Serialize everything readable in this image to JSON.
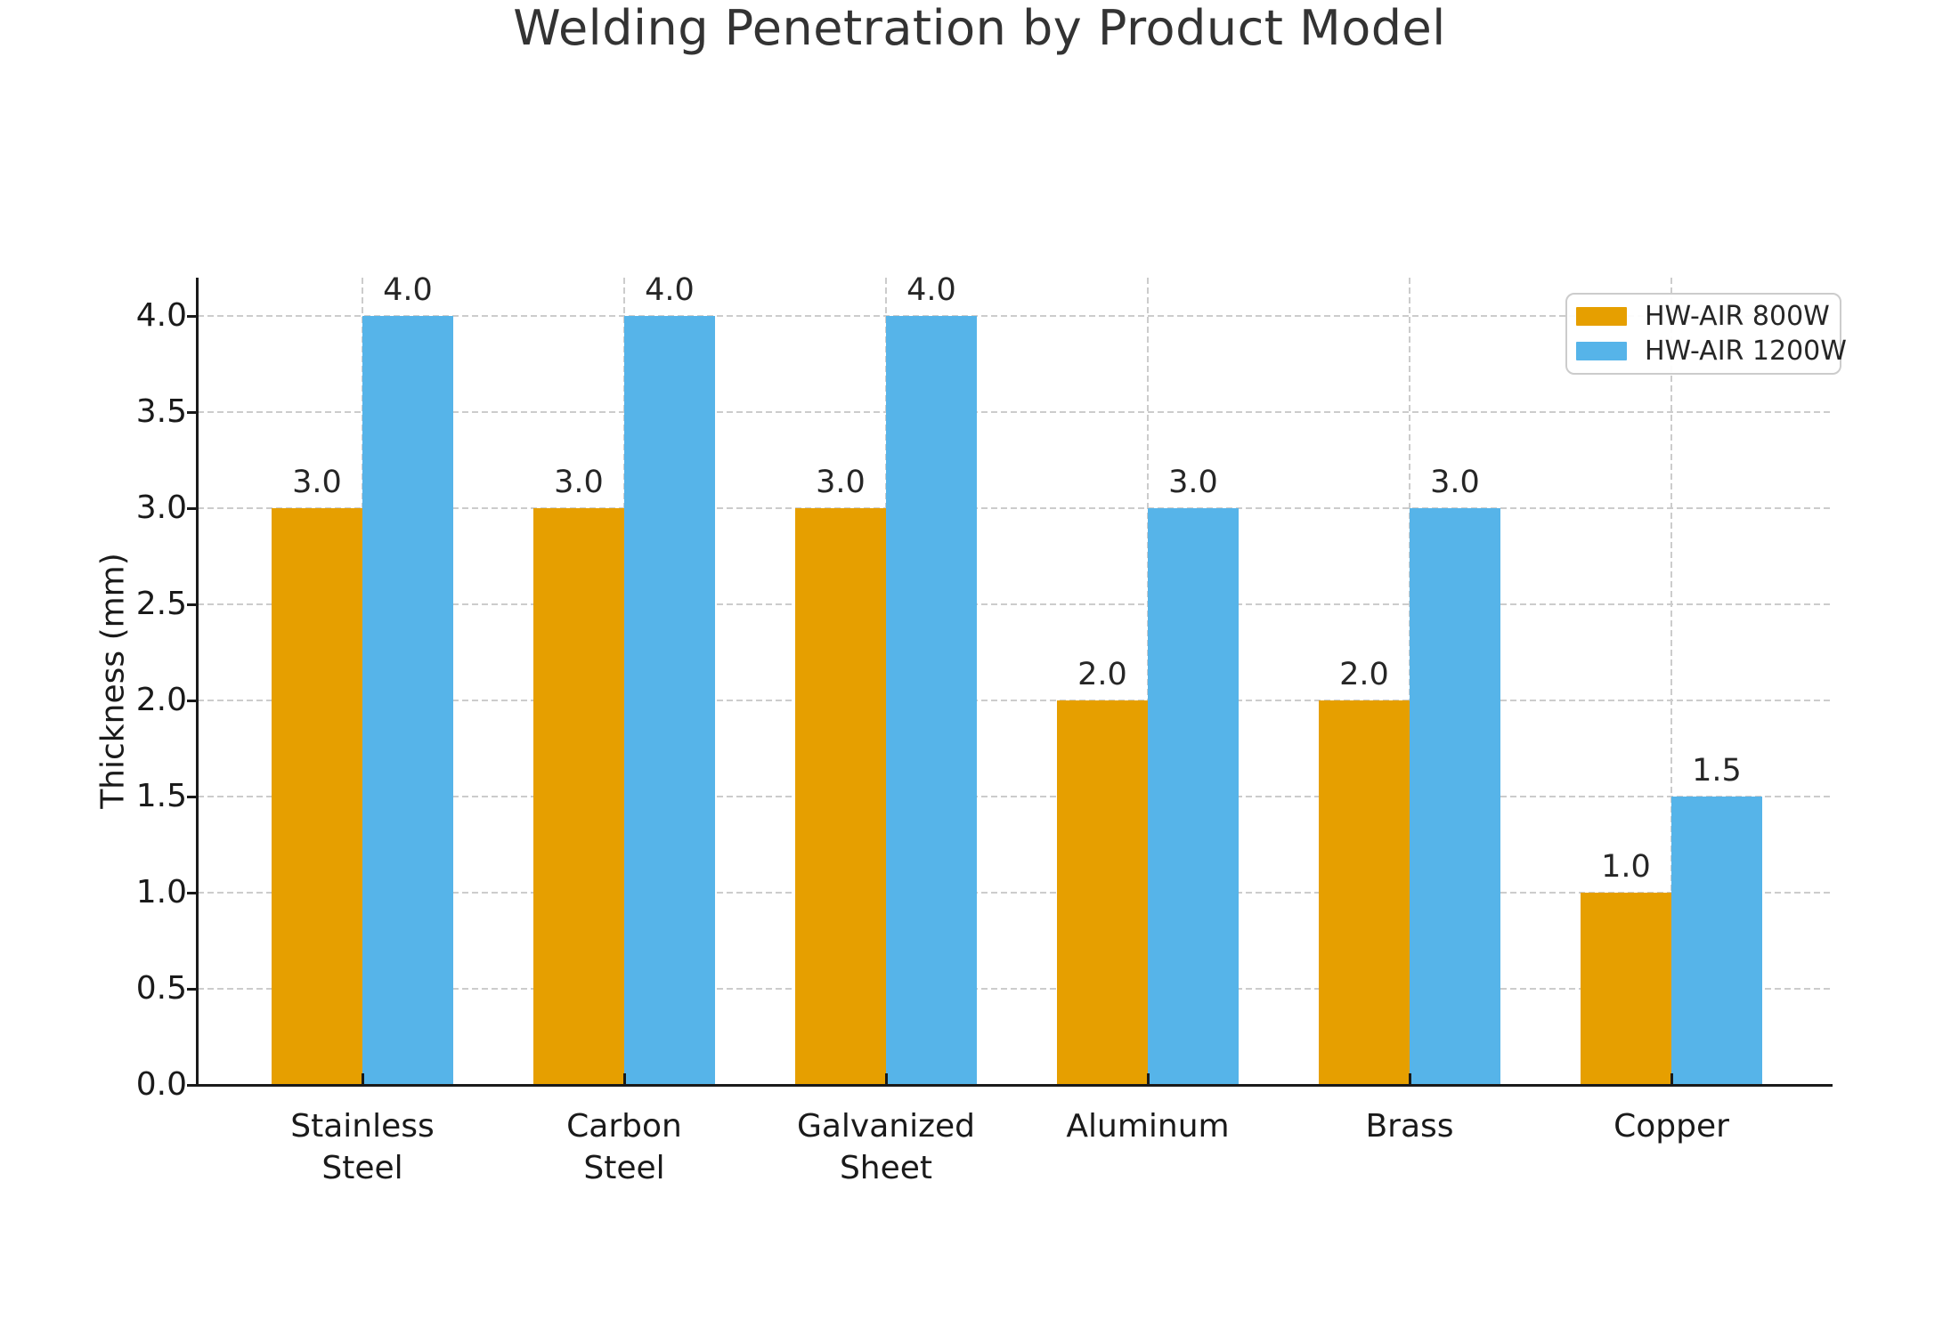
{
  "chart_data": {
    "type": "bar",
    "title": "Welding Penetration by Product Model",
    "ylabel": "Thickness (mm)",
    "xlabel": "",
    "categories": [
      "Stainless Steel",
      "Carbon Steel",
      "Galvanized Sheet",
      "Aluminum",
      "Brass",
      "Copper"
    ],
    "category_label_lines": [
      [
        "Stainless",
        "Steel"
      ],
      [
        "Carbon",
        "Steel"
      ],
      [
        "Galvanized",
        "Sheet"
      ],
      [
        "Aluminum"
      ],
      [
        "Brass"
      ],
      [
        "Copper"
      ]
    ],
    "series": [
      {
        "name": "HW-AIR 800W",
        "color": "#E69F00",
        "values": [
          3.0,
          3.0,
          3.0,
          2.0,
          2.0,
          1.0
        ]
      },
      {
        "name": "HW-AIR 1200W",
        "color": "#56B4E9",
        "values": [
          4.0,
          4.0,
          4.0,
          3.0,
          3.0,
          1.5
        ]
      }
    ],
    "bar_value_labels": [
      [
        "3.0",
        "3.0",
        "3.0",
        "2.0",
        "2.0",
        "1.0"
      ],
      [
        "4.0",
        "4.0",
        "4.0",
        "3.0",
        "3.0",
        "1.5"
      ]
    ],
    "yticks": [
      "0.0",
      "0.5",
      "1.0",
      "1.5",
      "2.0",
      "2.5",
      "3.0",
      "3.5",
      "4.0"
    ],
    "ylim": [
      0,
      4.2
    ],
    "grid": {
      "style": "dashed",
      "color": "#cccccc",
      "horizontal": true,
      "vertical": true
    },
    "legend": {
      "position": "upper right",
      "entries": [
        "HW-AIR 800W",
        "HW-AIR 1200W"
      ]
    },
    "colors": {
      "axis": "#1a1a1a",
      "text": "#333333",
      "grid": "#cccccc"
    }
  }
}
